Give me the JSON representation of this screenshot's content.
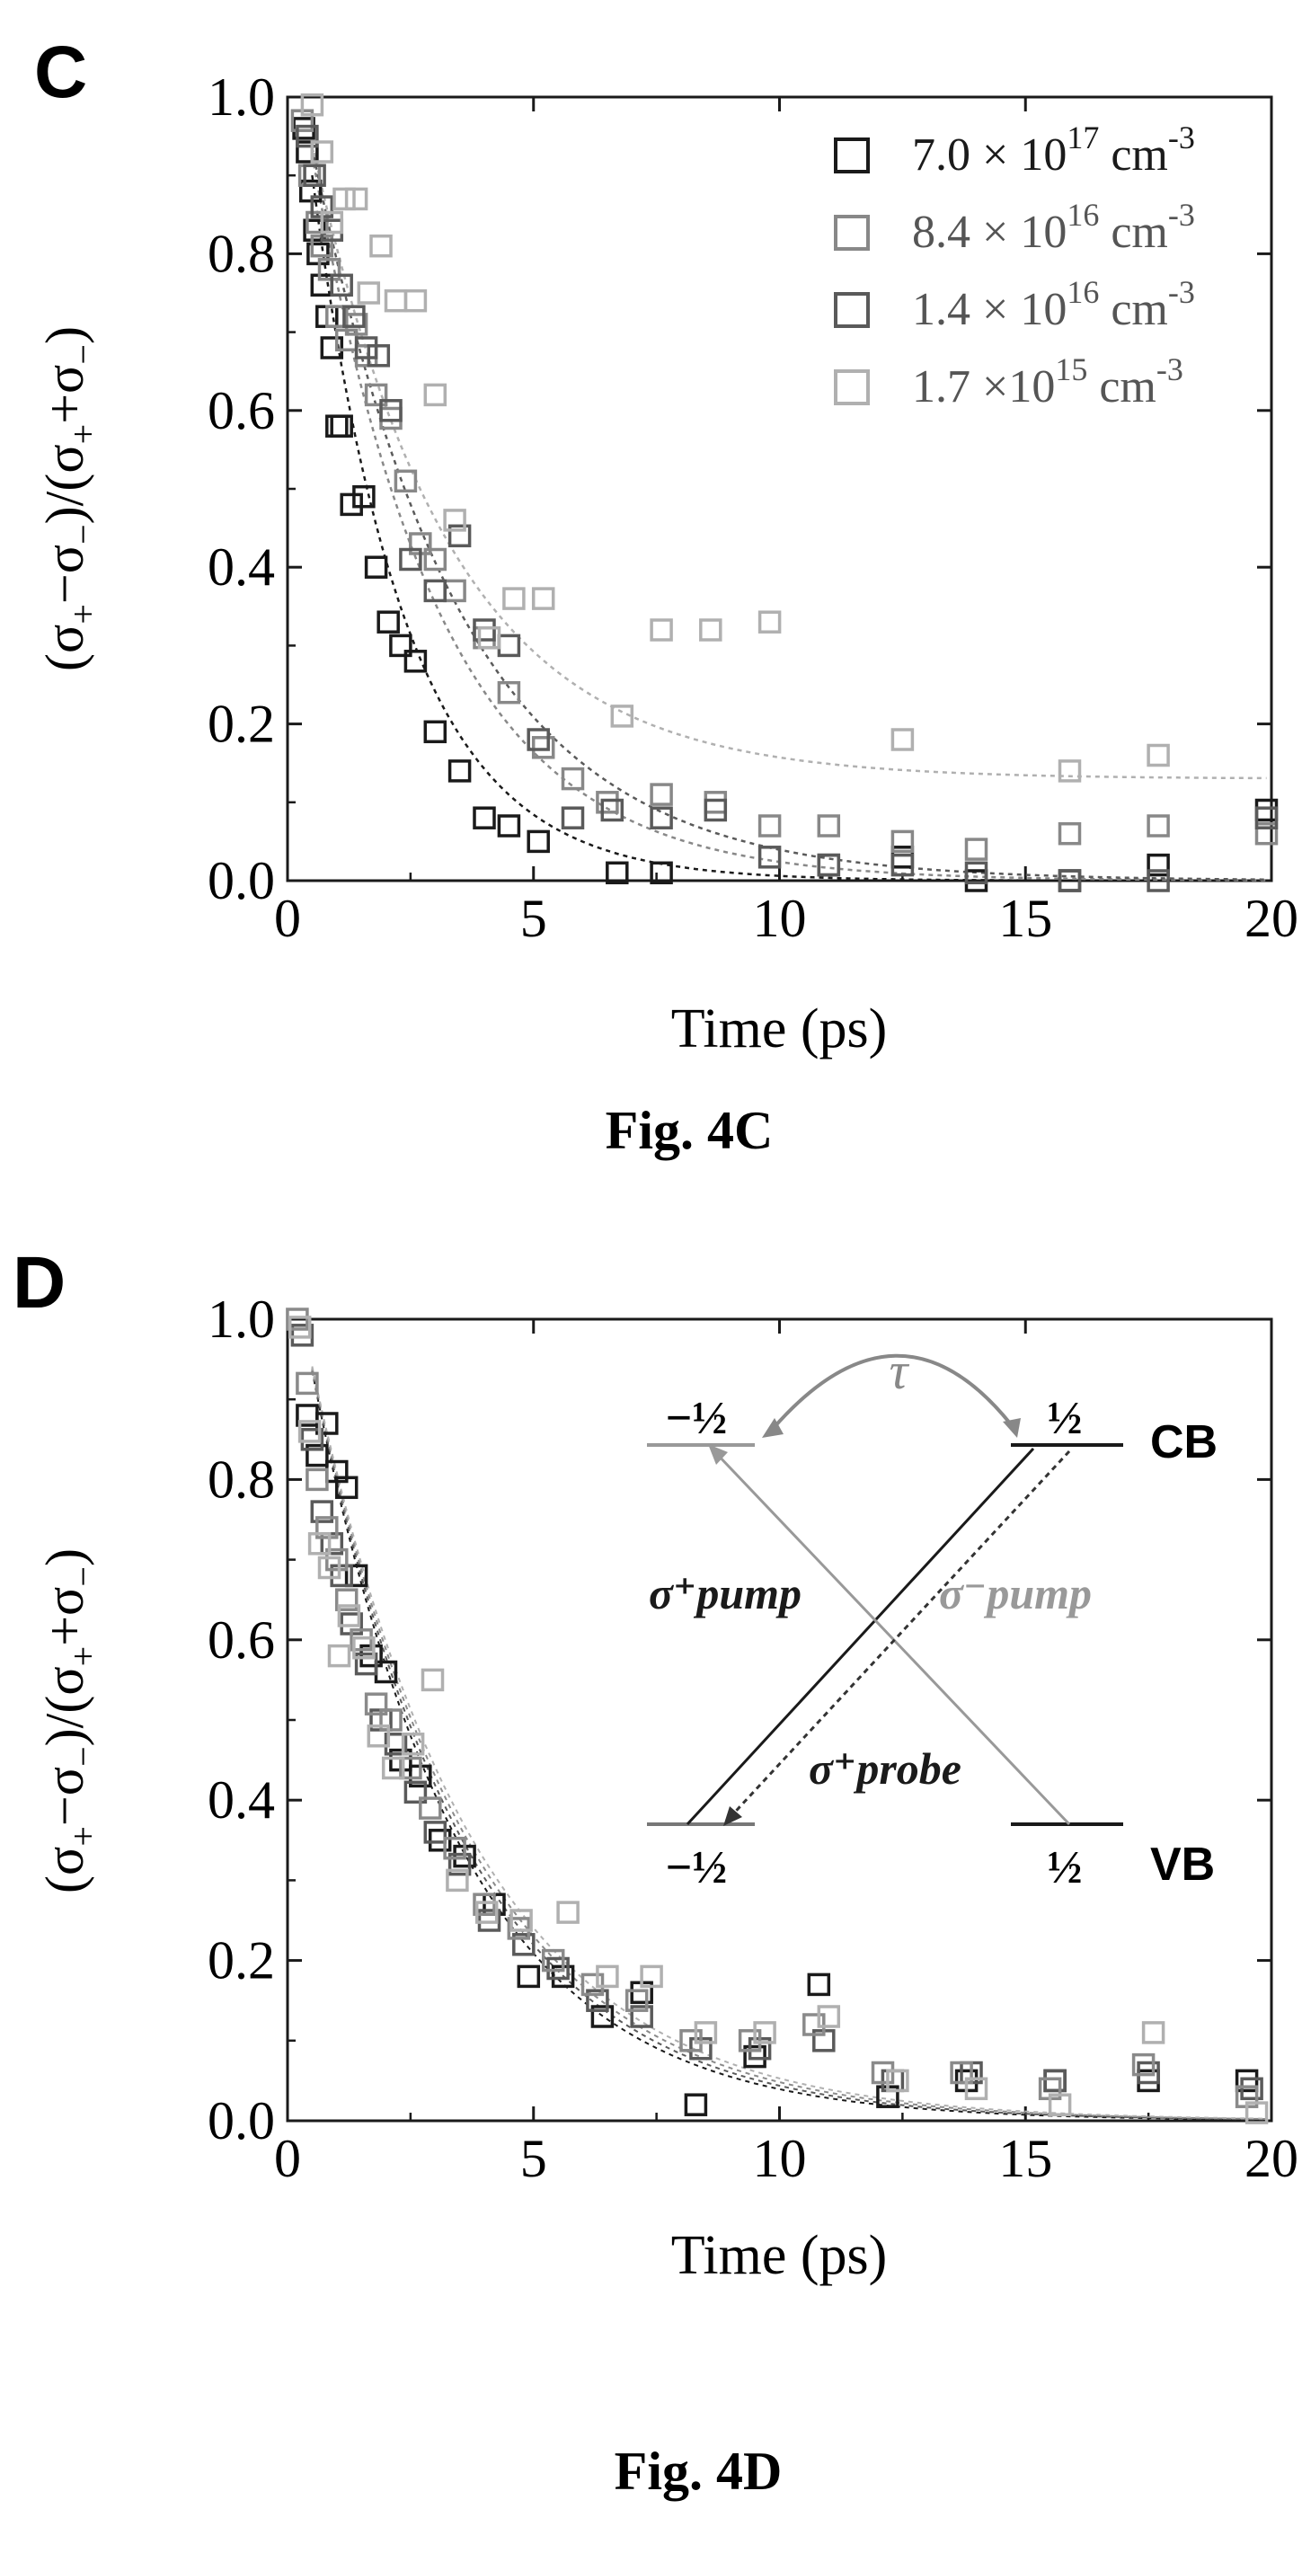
{
  "chart_data": [
    {
      "type": "scatter",
      "panel": "C",
      "caption": "Fig. 4C",
      "xlabel": "Time (ps)",
      "ylabel": "(σ₊−σ₋)/(σ₊+σ₋)",
      "xlim": [
        0,
        20
      ],
      "ylim": [
        0,
        1
      ],
      "xticks": [
        "0",
        "5",
        "10",
        "15",
        "20"
      ],
      "yticks": [
        "0.0",
        "0.2",
        "0.4",
        "0.6",
        "0.8",
        "1.0"
      ],
      "legend_position": "top-right",
      "series": [
        {
          "name": "7.0 × 10¹⁷ cm⁻³",
          "color": "#1a1a1a",
          "tau": 1.9,
          "offset": 0.0,
          "x": [
            0.33,
            0.4,
            0.47,
            0.55,
            0.62,
            0.7,
            0.8,
            0.9,
            1.0,
            1.1,
            1.3,
            1.55,
            1.8,
            2.05,
            2.3,
            2.6,
            3.0,
            3.5,
            4.0,
            4.5,
            5.1,
            6.7,
            7.6,
            11.0,
            12.5,
            14.0,
            15.9,
            17.7,
            19.9
          ],
          "y": [
            0.96,
            0.93,
            0.88,
            0.83,
            0.8,
            0.76,
            0.72,
            0.68,
            0.58,
            0.58,
            0.48,
            0.49,
            0.4,
            0.33,
            0.3,
            0.28,
            0.19,
            0.14,
            0.08,
            0.07,
            0.05,
            0.01,
            0.01,
            0.02,
            0.03,
            0.0,
            0.0,
            0.02,
            0.09
          ]
        },
        {
          "name": "8.4 × 10¹⁶ cm⁻³",
          "color": "#888888",
          "tau": 2.6,
          "offset": 0.0,
          "x": [
            0.3,
            0.45,
            0.6,
            0.7,
            0.85,
            1.0,
            1.2,
            1.4,
            1.6,
            1.8,
            2.1,
            2.4,
            2.7,
            3.0,
            3.4,
            4.0,
            4.5,
            5.2,
            5.8,
            6.5,
            7.6,
            8.7,
            9.8,
            11.0,
            12.5,
            14.0,
            15.9,
            17.7,
            19.9
          ],
          "y": [
            0.97,
            0.9,
            0.84,
            0.81,
            0.78,
            0.72,
            0.69,
            0.71,
            0.67,
            0.62,
            0.59,
            0.51,
            0.43,
            0.41,
            0.37,
            0.31,
            0.24,
            0.17,
            0.13,
            0.1,
            0.11,
            0.1,
            0.07,
            0.07,
            0.05,
            0.04,
            0.06,
            0.07,
            0.06
          ]
        },
        {
          "name": "1.4 × 10¹⁶ cm⁻³",
          "color": "#5a5a5a",
          "tau": 3.0,
          "offset": 0.0,
          "x": [
            0.4,
            0.55,
            0.7,
            0.9,
            1.1,
            1.35,
            1.6,
            1.85,
            2.1,
            2.5,
            3.0,
            3.5,
            4.0,
            4.5,
            5.1,
            5.8,
            6.6,
            7.6,
            8.7,
            9.8,
            11.0,
            12.5,
            14.0,
            15.9,
            17.7,
            19.9
          ],
          "y": [
            0.95,
            0.9,
            0.86,
            0.83,
            0.76,
            0.72,
            0.68,
            0.67,
            0.6,
            0.41,
            0.37,
            0.44,
            0.32,
            0.3,
            0.18,
            0.08,
            0.09,
            0.08,
            0.09,
            0.03,
            0.02,
            0.02,
            0.01,
            0.0,
            0.0,
            0.08
          ]
        },
        {
          "name": "1.7 ×10¹⁵ cm⁻³",
          "color": "#b0b0b0",
          "tau": 2.8,
          "offset": 0.13,
          "x": [
            0.5,
            0.7,
            0.9,
            1.15,
            1.4,
            1.65,
            1.9,
            2.2,
            2.6,
            3.0,
            3.4,
            4.1,
            4.6,
            5.2,
            6.8,
            7.6,
            8.6,
            9.8,
            12.5,
            15.9,
            17.7
          ],
          "y": [
            0.99,
            0.93,
            0.84,
            0.87,
            0.87,
            0.75,
            0.81,
            0.74,
            0.74,
            0.62,
            0.46,
            0.31,
            0.36,
            0.36,
            0.21,
            0.32,
            0.32,
            0.33,
            0.18,
            0.14,
            0.16
          ]
        }
      ]
    },
    {
      "type": "scatter",
      "panel": "D",
      "caption": "Fig. 4D",
      "xlabel": "Time (ps)",
      "ylabel": "(σ₊−σ₋)/(σ₊+σ₋)",
      "xlim": [
        0,
        20
      ],
      "ylim": [
        0,
        1
      ],
      "xticks": [
        "0",
        "5",
        "10",
        "15",
        "20"
      ],
      "yticks": [
        "0.0",
        "0.2",
        "0.4",
        "0.6",
        "0.8",
        "1.0"
      ],
      "series": [
        {
          "color": "#1a1a1a",
          "tau": 3.0,
          "x": [
            0.4,
            0.6,
            0.8,
            1.0,
            1.2,
            1.4,
            1.7,
            2.0,
            2.3,
            2.7,
            3.1,
            3.6,
            4.2,
            4.9,
            5.6,
            6.4,
            7.2,
            8.3,
            9.5,
            10.8,
            12.2,
            13.8,
            15.6,
            17.5,
            19.5
          ],
          "y": [
            0.88,
            0.83,
            0.87,
            0.81,
            0.79,
            0.68,
            0.58,
            0.56,
            0.45,
            0.43,
            0.35,
            0.33,
            0.27,
            0.18,
            0.18,
            0.13,
            0.16,
            0.02,
            0.08,
            0.17,
            0.03,
            0.05,
            0.05,
            0.05,
            0.05
          ]
        },
        {
          "color": "#5a5a5a",
          "tau": 3.1,
          "x": [
            0.3,
            0.5,
            0.7,
            0.9,
            1.1,
            1.3,
            1.6,
            1.9,
            2.2,
            2.6,
            3.0,
            3.5,
            4.1,
            4.8,
            5.5,
            6.3,
            7.2,
            8.4,
            9.6,
            10.9,
            12.3,
            13.9,
            15.6,
            17.5,
            19.6
          ],
          "y": [
            0.98,
            0.85,
            0.76,
            0.72,
            0.68,
            0.62,
            0.57,
            0.5,
            0.47,
            0.41,
            0.36,
            0.32,
            0.25,
            0.22,
            0.19,
            0.15,
            0.13,
            0.09,
            0.09,
            0.1,
            0.05,
            0.06,
            0.05,
            0.06,
            0.04
          ]
        },
        {
          "color": "#8a8a8a",
          "tau": 3.2,
          "x": [
            0.2,
            0.4,
            0.6,
            0.8,
            1.0,
            1.2,
            1.5,
            1.8,
            2.1,
            2.5,
            2.9,
            3.4,
            4.0,
            4.7,
            5.4,
            6.2,
            7.1,
            8.2,
            9.4,
            10.7,
            12.1,
            13.7,
            15.5,
            17.4,
            19.5
          ],
          "y": [
            1.0,
            0.92,
            0.8,
            0.74,
            0.7,
            0.65,
            0.6,
            0.52,
            0.5,
            0.44,
            0.39,
            0.34,
            0.27,
            0.24,
            0.2,
            0.17,
            0.15,
            0.1,
            0.1,
            0.12,
            0.06,
            0.06,
            0.04,
            0.07,
            0.03
          ]
        },
        {
          "color": "#b0b0b0",
          "tau": 3.3,
          "x": [
            0.25,
            0.45,
            0.65,
            0.85,
            1.05,
            1.25,
            1.55,
            1.85,
            2.15,
            2.55,
            2.95,
            3.45,
            4.05,
            4.75,
            5.7,
            6.5,
            7.4,
            8.5,
            9.7,
            11.0,
            12.4,
            14.0,
            15.7,
            17.6,
            19.7
          ],
          "y": [
            0.99,
            0.86,
            0.72,
            0.69,
            0.58,
            0.63,
            0.59,
            0.48,
            0.44,
            0.47,
            0.55,
            0.3,
            0.26,
            0.25,
            0.26,
            0.18,
            0.18,
            0.11,
            0.11,
            0.13,
            0.05,
            0.04,
            0.02,
            0.11,
            0.01
          ]
        }
      ],
      "inset": {
        "tau_label": "τ",
        "cb_label": "CB",
        "vb_label": "VB",
        "cb_left_label": "−½",
        "cb_right_label": "½",
        "vb_left_label": "−½",
        "vb_right_label": "½",
        "pump_plus": "σ⁺pump",
        "pump_minus": "σ⁻pump",
        "probe_plus": "σ⁺probe"
      }
    }
  ],
  "panel_c": {
    "letter": "C",
    "caption": "Fig. 4C",
    "x_title": "Time (ps)",
    "legend": [
      {
        "mantissa": "7.0 × 10",
        "exp": "17",
        "unit": " cm",
        "uexp": "-3"
      },
      {
        "mantissa": "8.4 × 10",
        "exp": "16",
        "unit": " cm",
        "uexp": "-3"
      },
      {
        "mantissa": "1.4 × 10",
        "exp": "16",
        "unit": " cm",
        "uexp": "-3"
      },
      {
        "mantissa": "1.7 ×10",
        "exp": "15",
        "unit": " cm",
        "uexp": "-3"
      }
    ]
  },
  "panel_d": {
    "letter": "D",
    "caption": "Fig. 4D",
    "x_title": "Time (ps)"
  }
}
